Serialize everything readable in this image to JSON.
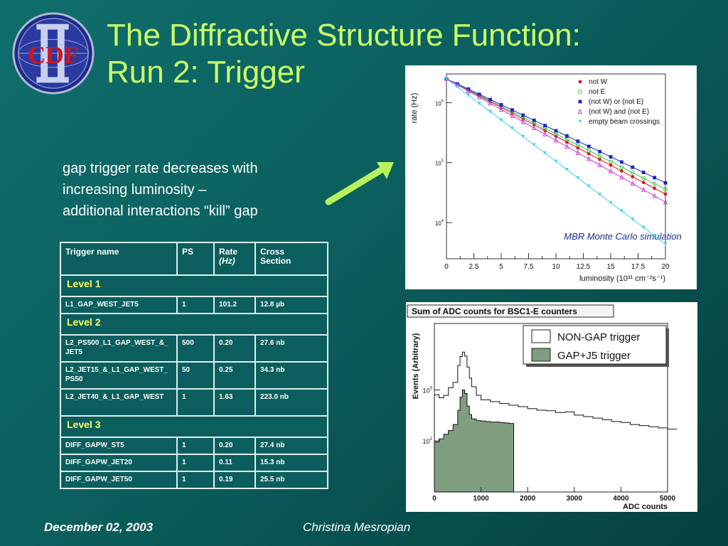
{
  "logo": {
    "text": "CDF",
    "numeral": "II"
  },
  "title": {
    "line1": "The Diffractive Structure Function:",
    "line2": "Run 2: Trigger"
  },
  "bullet": {
    "line1": "gap trigger rate decreases with",
    "line2": "increasing luminosity –",
    "line3": "additional interactions “kill” gap"
  },
  "colors": {
    "title": "#ccff66",
    "arrow": "#b6f25a",
    "background": "#0b5f5e"
  },
  "table": {
    "headers": [
      "Trigger name",
      "PS",
      "Rate",
      "(Hz)",
      "Cross",
      "Section"
    ],
    "levels": [
      {
        "label": "Level 1",
        "rows": [
          [
            "L1_GAP_WEST_JET5",
            "1",
            "101.2",
            "12.8 µb"
          ]
        ]
      },
      {
        "label": "Level 2",
        "rows": [
          [
            "L2_PS500_L1_GAP_WEST_&_JET5",
            "500",
            "0.20",
            "27.6 nb"
          ],
          [
            "L2_JET15_&_L1_GAP_WEST_PS50",
            "50",
            "0.25",
            "34.3 nb"
          ],
          [
            "L2_JET40_&_L1_GAP_WEST",
            "1",
            "1.63",
            "223.0 nb"
          ]
        ]
      },
      {
        "label": "Level 3",
        "rows": [
          [
            "DIFF_GAPW_ST5",
            "1",
            "0.20",
            "27.4 nb"
          ],
          [
            "DIFF_GAPW_JET20",
            "1",
            "0.11",
            "15.3 nb"
          ],
          [
            "DIFF_GAPW_JET50",
            "1",
            "0.19",
            "25.5 nb"
          ]
        ]
      }
    ]
  },
  "chart_data": [
    {
      "type": "scatter",
      "title": "",
      "ylabel": "rate (Hz)",
      "xlabel": "luminosity (10³¹ cm⁻²s⁻¹)",
      "annotation": "MBR Monte Carlo simulation",
      "xlim": [
        0,
        20
      ],
      "ylim": [
        2500,
        3000000
      ],
      "log_y": true,
      "x_ticks": [
        "0",
        "2.5",
        "5",
        "7.5",
        "10",
        "12.5",
        "15",
        "17.5",
        "20"
      ],
      "y_ticks": [
        {
          "label": "10",
          "exp": "4",
          "value": 10000
        },
        {
          "label": "10",
          "exp": "5",
          "value": 100000
        },
        {
          "label": "10",
          "exp": "6",
          "value": 1000000
        }
      ],
      "legend_position": "top-right",
      "x": [
        0,
        1,
        2,
        3,
        4,
        5,
        6,
        7,
        8,
        9,
        10,
        11,
        12,
        13,
        14,
        15,
        16,
        17,
        18,
        19,
        20
      ],
      "series": [
        {
          "name": "not W",
          "color": "#e0161b",
          "marker": "circle",
          "y0": 2500000,
          "y20": 30000
        },
        {
          "name": "not E",
          "color": "#37c748",
          "marker": "circle-open",
          "y0": 2500000,
          "y20": 36000
        },
        {
          "name": "(not W) or (not E)",
          "color": "#1a24c8",
          "marker": "square",
          "y0": 2500000,
          "y20": 46000
        },
        {
          "name": "(not W) and (not E)",
          "color": "#d23bd6",
          "marker": "triangle-open",
          "y0": 2500000,
          "y20": 22000
        },
        {
          "name": "empty beam crossings",
          "color": "#3bd4e6",
          "marker": "triangle-down",
          "y0": 2500000,
          "y20": 4400
        }
      ]
    },
    {
      "type": "area",
      "title": "Sum of ADC counts for BSC1-E counters",
      "ylabel": "Events (Arbitrary)",
      "xlabel": "ADC counts",
      "xlim": [
        0,
        5000
      ],
      "ylim": [
        10,
        20000
      ],
      "log_y": true,
      "x_ticks": [
        "0",
        "1000",
        "2000",
        "3000",
        "4000",
        "5000"
      ],
      "y_ticks": [
        {
          "label": "10",
          "exp": "2",
          "value": 100
        },
        {
          "label": "10",
          "exp": "3",
          "value": 1000
        }
      ],
      "legend_position": "top-right",
      "series": [
        {
          "name": "NON-GAP trigger",
          "color": "#ffffff",
          "x": [
            0,
            100,
            200,
            300,
            400,
            500,
            550,
            600,
            650,
            700,
            750,
            800,
            900,
            1000,
            1200,
            1400,
            1600,
            1800,
            2000,
            2200,
            2400,
            2600,
            2800,
            3000,
            3200,
            3400,
            3600,
            3800,
            4000,
            4200,
            4400,
            4600,
            4800,
            5000
          ],
          "values": [
            800,
            700,
            780,
            1100,
            1400,
            3000,
            4500,
            5500,
            4600,
            2800,
            1700,
            1150,
            780,
            640,
            590,
            540,
            500,
            470,
            430,
            400,
            390,
            360,
            370,
            320,
            300,
            280,
            260,
            240,
            230,
            210,
            200,
            190,
            180,
            170
          ]
        },
        {
          "name": "GAP+J5 trigger",
          "color": "#7f9e7f",
          "x": [
            0,
            100,
            200,
            300,
            400,
            500,
            550,
            600,
            650,
            700,
            750,
            800,
            900,
            1000,
            1100,
            1200,
            1300,
            1400,
            1500,
            1600
          ],
          "values": [
            95,
            110,
            135,
            160,
            210,
            400,
            720,
            1000,
            850,
            480,
            330,
            270,
            250,
            245,
            240,
            235,
            235,
            230,
            225,
            220
          ]
        }
      ]
    }
  ],
  "footer": {
    "date": "December 02, 2003",
    "author": "Christina Mesropian"
  }
}
